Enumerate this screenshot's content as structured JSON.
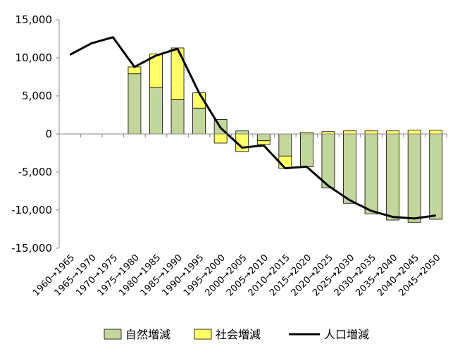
{
  "chart_data": {
    "type": "bar",
    "stacked": true,
    "categories": [
      "1960→1965",
      "1965→1970",
      "1970→1975",
      "1975→1980",
      "1980→1985",
      "1985→1990",
      "1990→1995",
      "1995→2000",
      "2000→2005",
      "2005→2010",
      "2010→2015",
      "2015→2020",
      "2020→2025",
      "2025→2030",
      "2030→2035",
      "2035→2040",
      "2040→2045",
      "2045→2050"
    ],
    "series": [
      {
        "name": "自然増減",
        "type": "bar",
        "color": "#c3d69b",
        "values": [
          null,
          null,
          null,
          7900,
          6100,
          4500,
          3400,
          1900,
          400,
          -900,
          -2900,
          -4300,
          -7100,
          -9100,
          -10500,
          -11300,
          -11600,
          -11200
        ]
      },
      {
        "name": "社会増減",
        "type": "bar",
        "color": "#ffff66",
        "values": [
          null,
          null,
          null,
          900,
          4400,
          6800,
          2000,
          -1200,
          -2300,
          -500,
          -1600,
          200,
          300,
          400,
          400,
          400,
          500,
          500
        ]
      },
      {
        "name": "人口増減",
        "type": "line",
        "color": "#000000",
        "values": [
          10400,
          11900,
          12700,
          8800,
          10300,
          11200,
          5400,
          800,
          -1800,
          -1500,
          -4500,
          -4300,
          -6800,
          -8700,
          -10100,
          -10900,
          -11100,
          -10700
        ]
      }
    ],
    "ylim": [
      -15000,
      15000
    ],
    "yticks": [
      15000,
      10000,
      5000,
      0,
      -5000,
      -10000,
      -15000
    ],
    "yticklabels": [
      "15,000",
      "10,000",
      "5,000",
      "0",
      "-5,000",
      "-10,000",
      "-15,000"
    ],
    "legend": "bottom",
    "grid": false
  }
}
